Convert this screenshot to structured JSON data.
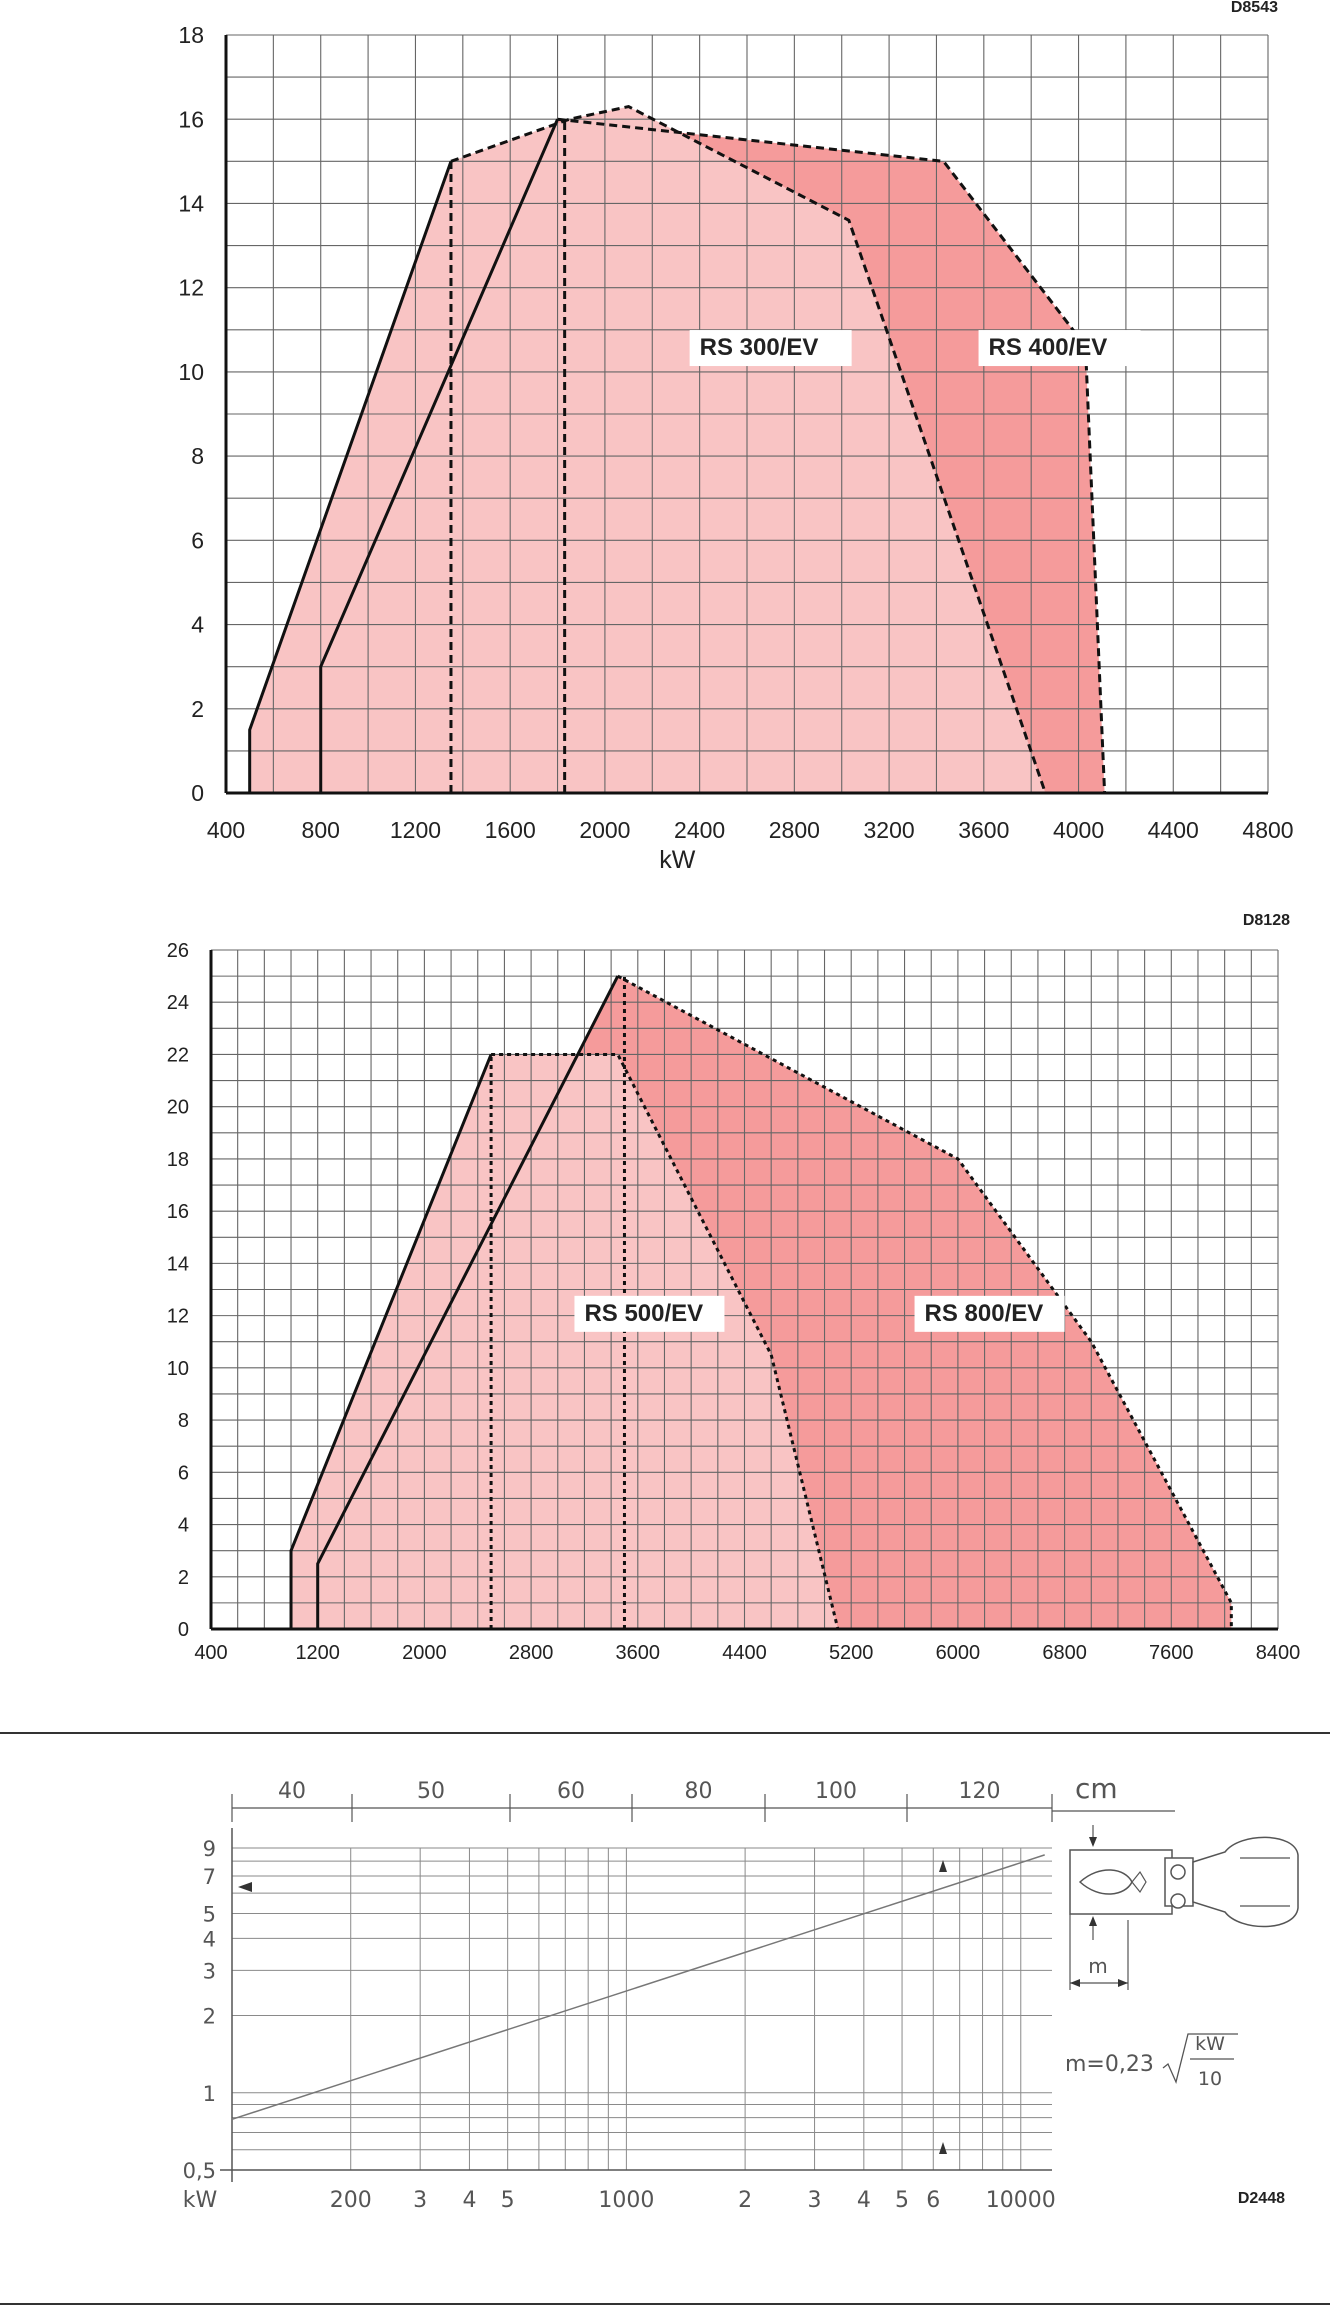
{
  "chart_data": [
    {
      "type": "area",
      "code": "D8543",
      "xlabel": "kW",
      "xlim": [
        400,
        4800
      ],
      "ylim": [
        0,
        18
      ],
      "x_ticks": [
        "400",
        "800",
        "1200",
        "1600",
        "2000",
        "2400",
        "2800",
        "3200",
        "3600",
        "4000",
        "4400",
        "4800"
      ],
      "y_ticks": [
        "0",
        "2",
        "4",
        "6",
        "8",
        "10",
        "12",
        "14",
        "16",
        "18"
      ],
      "x_grid_step": 200,
      "y_grid_step": 1,
      "series": [
        {
          "name": "RS 300/EV",
          "color": "#f9c4c4",
          "boundary": [
            [
              500,
              0
            ],
            [
              500,
              1.5
            ],
            [
              1350,
              15
            ],
            [
              1850,
              16
            ],
            [
              2100,
              16.3
            ],
            [
              3030,
              13.6
            ],
            [
              3860,
              0
            ]
          ],
          "label_at": [
            2400,
            10.4
          ]
        },
        {
          "name": "RS 400/EV",
          "color": "#f59b9b",
          "boundary": [
            [
              800,
              0
            ],
            [
              800,
              3
            ],
            [
              1800,
              16
            ],
            [
              3430,
              15
            ],
            [
              3990,
              10.9
            ],
            [
              4030,
              10.5
            ],
            [
              4110,
              0
            ]
          ],
          "label_at": [
            3620,
            10.4
          ]
        }
      ],
      "dashed_verticals": [
        1350,
        1830
      ]
    },
    {
      "type": "area",
      "code": "D8128",
      "xlim": [
        400,
        8400
      ],
      "ylim": [
        0,
        26
      ],
      "x_ticks": [
        "400",
        "1200",
        "2000",
        "2800",
        "3600",
        "4400",
        "5200",
        "6000",
        "6800",
        "7600",
        "8400"
      ],
      "y_ticks": [
        "0",
        "2",
        "4",
        "6",
        "8",
        "10",
        "12",
        "14",
        "16",
        "18",
        "20",
        "22",
        "24",
        "26"
      ],
      "x_grid_step": 200,
      "y_grid_step": 1,
      "series": [
        {
          "name": "RS 500/EV",
          "color": "#f9c4c4",
          "boundary": [
            [
              1000,
              0
            ],
            [
              1000,
              3
            ],
            [
              2500,
              22
            ],
            [
              3450,
              22
            ],
            [
              4600,
              10.5
            ],
            [
              5100,
              0
            ]
          ],
          "label_at": [
            3200,
            11.8
          ]
        },
        {
          "name": "RS 800/EV",
          "color": "#f59b9b",
          "boundary": [
            [
              1200,
              0
            ],
            [
              1200,
              2.5
            ],
            [
              3450,
              25
            ],
            [
              6000,
              18
            ],
            [
              7000,
              11
            ],
            [
              8050,
              1
            ],
            [
              8050,
              0
            ]
          ],
          "label_at": [
            5750,
            11.8
          ]
        }
      ],
      "dashed_verticals": [
        2500,
        3500
      ]
    },
    {
      "type": "line",
      "code": "D2448",
      "xlabel": "kW",
      "unit_top": "cm",
      "formula": "m=0,23",
      "formula_num": "kW",
      "formula_den": "10",
      "dim_label": "m",
      "top_labels": [
        "40",
        "50",
        "60",
        "80",
        "100",
        "120"
      ],
      "y_ticks": [
        "9",
        "7",
        "5",
        "4",
        "3",
        "2",
        "1",
        "0,5"
      ],
      "x_ticks": [
        "200",
        "3",
        "4",
        "5",
        "1000",
        "2",
        "3",
        "4",
        "5",
        "6",
        "10000"
      ],
      "ylim": [
        0.5,
        9
      ],
      "xlim": [
        100,
        12000
      ],
      "log_x": true,
      "log_y": true,
      "series": [
        {
          "points": [
            [
              100,
              0.788
            ],
            [
              11500,
              8.46
            ]
          ]
        }
      ]
    }
  ]
}
